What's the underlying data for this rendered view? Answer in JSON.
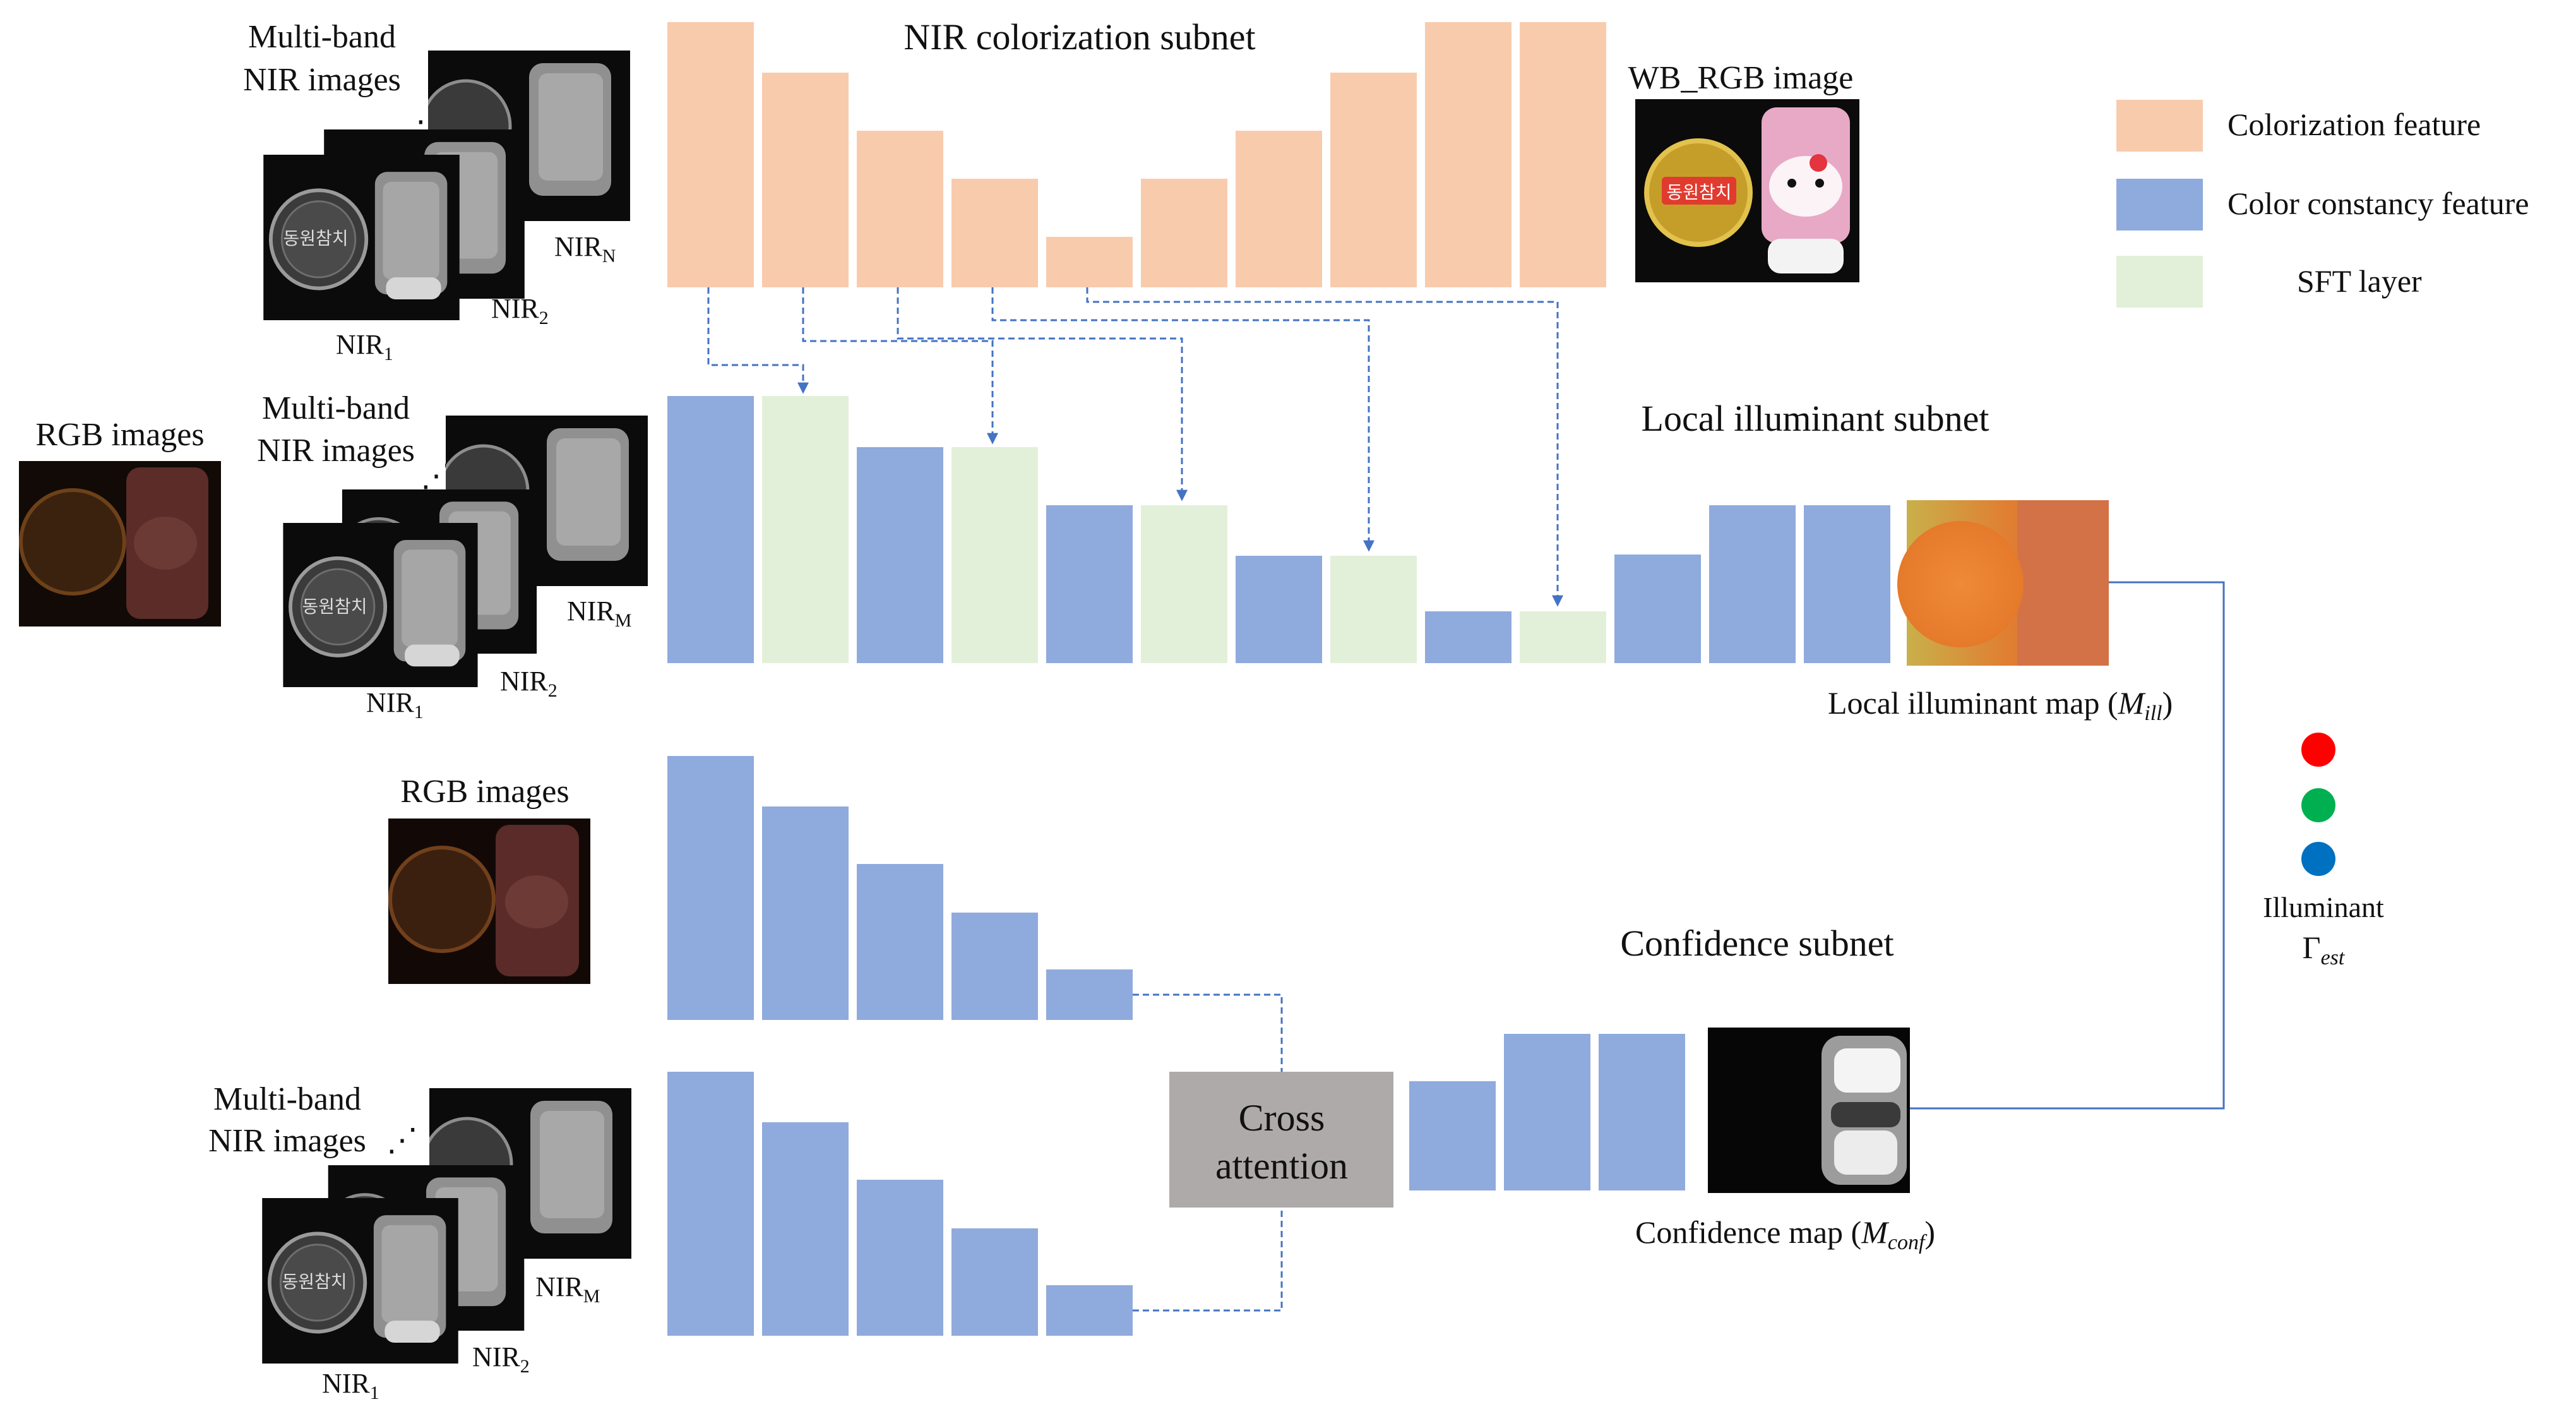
{
  "colors": {
    "colorization": "#F8CBAD",
    "color_constancy": "#8FAADC",
    "sft": "#E2F0D9",
    "cross_attention": "#AEAAAA",
    "connector": "#4472C4",
    "red": "#FF0000",
    "green": "#00B050",
    "blue": "#0070C0"
  },
  "legend": {
    "colorization": "Colorization feature",
    "color_constancy": "Color constancy feature",
    "sft": "SFT layer"
  },
  "subnets": {
    "nir_colorization": "NIR colorization subnet",
    "local_illuminant": "Local illuminant subnet",
    "confidence": "Confidence subnet"
  },
  "inputs": {
    "multiband": "Multi-band",
    "nir_images": "NIR images",
    "rgb_images": "RGB images",
    "wb_rgb": "WB_RGB image",
    "dots": "⋰"
  },
  "nir_labels": {
    "nir": "NIR",
    "sub_1": "1",
    "sub_2": "2",
    "sub_N": "N",
    "sub_M": "M"
  },
  "maps": {
    "local_prefix": "Local illuminant map (",
    "local_symbol": "M",
    "local_sub": "ill",
    "confidence_prefix": "Confidence map (",
    "confidence_symbol": "M",
    "confidence_sub": "conf",
    "close_paren": ")"
  },
  "cross_attention": {
    "line1": "Cross",
    "line2": "attention"
  },
  "illuminant": {
    "label": "Illuminant",
    "symbol": "Γ",
    "sub": "est"
  },
  "thumbs": {
    "can_text": "동원참치"
  }
}
